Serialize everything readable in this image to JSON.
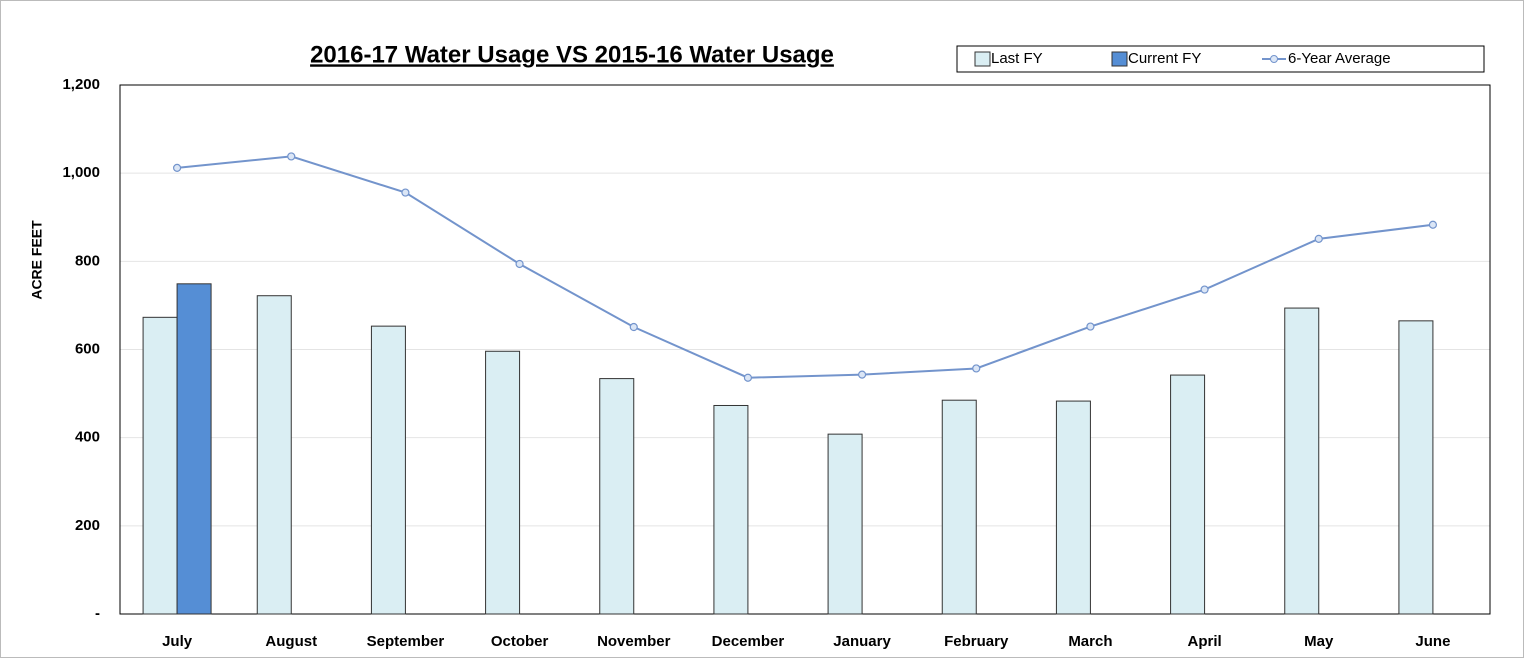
{
  "chart_data": {
    "type": "bar",
    "title": "2016-17 Water Usage VS 2015-16 Water Usage",
    "y_label": "ACRE FEET",
    "categories": [
      "July",
      "August",
      "September",
      "October",
      "November",
      "December",
      "January",
      "February",
      "March",
      "April",
      "May",
      "June"
    ],
    "series": [
      {
        "name": "Last FY",
        "type": "bar",
        "color": "#daeef3",
        "values": [
          673,
          722,
          653,
          596,
          534,
          473,
          408,
          485,
          483,
          542,
          694,
          665
        ]
      },
      {
        "name": "Current FY",
        "type": "bar",
        "color": "#558ed5",
        "values": [
          749,
          null,
          null,
          null,
          null,
          null,
          null,
          null,
          null,
          null,
          null,
          null
        ]
      },
      {
        "name": "6-Year Average",
        "type": "line",
        "color": "#7394cc",
        "values": [
          1012,
          1038,
          956,
          794,
          651,
          536,
          543,
          557,
          652,
          736,
          851,
          883
        ]
      }
    ],
    "ylim": [
      0,
      1200
    ],
    "yticks": [
      {
        "value": 0,
        "label": "-"
      },
      200,
      400,
      600,
      800,
      {
        "value": 1000,
        "label": "1,000"
      },
      {
        "value": 1200,
        "label": "1,200"
      }
    ],
    "grid": true,
    "legend": "top-right"
  }
}
